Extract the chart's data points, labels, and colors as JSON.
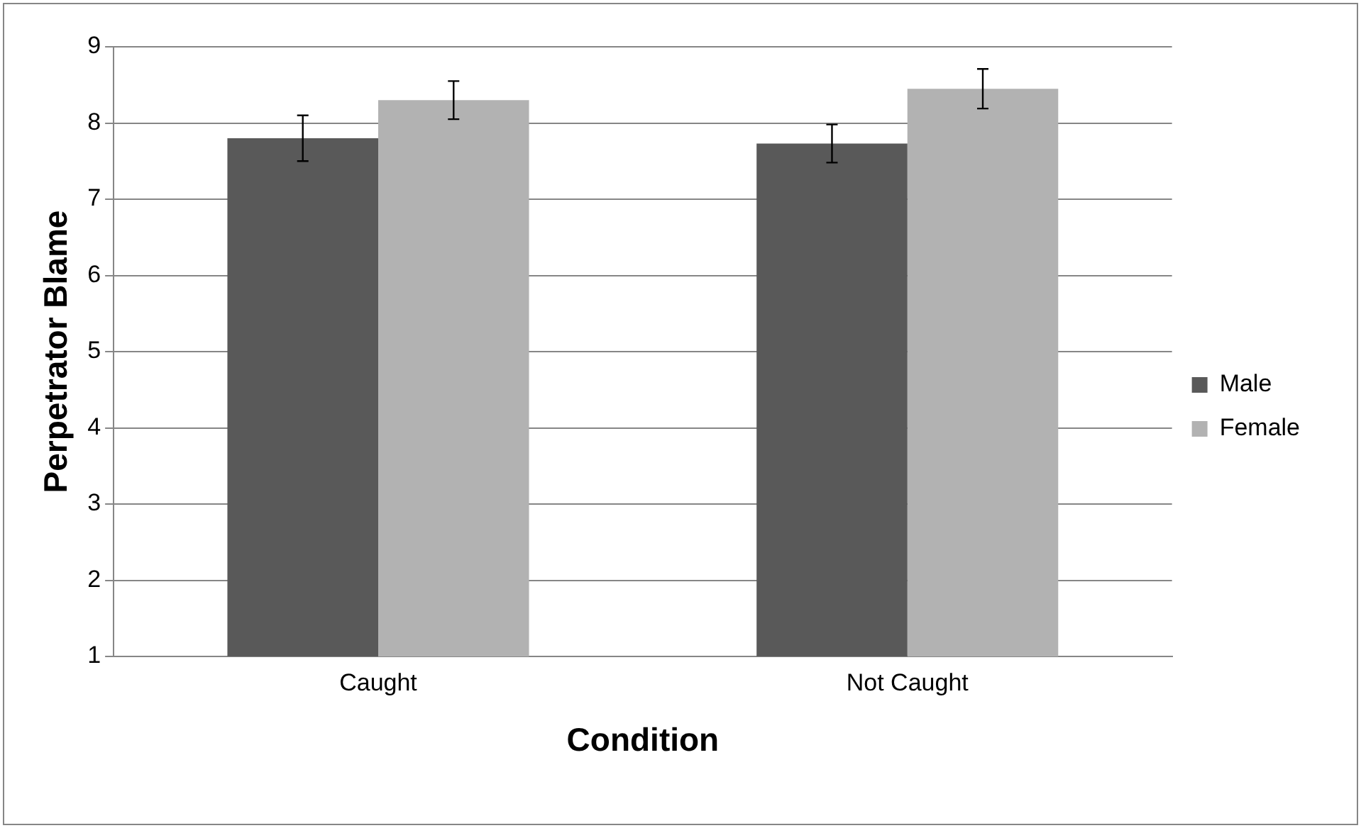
{
  "chart_data": {
    "type": "bar",
    "xlabel": "Condition",
    "ylabel": "Perpetrator Blame",
    "categories": [
      "Caught",
      "Not Caught"
    ],
    "series": [
      {
        "name": "Male",
        "color": "#595959",
        "values": [
          7.8,
          7.73
        ],
        "errors": [
          0.3,
          0.25
        ]
      },
      {
        "name": "Female",
        "color": "#b2b2b2",
        "values": [
          8.3,
          8.45
        ],
        "errors": [
          0.25,
          0.26
        ]
      }
    ],
    "ylim": [
      1,
      9
    ],
    "yticks": [
      1,
      2,
      3,
      4,
      5,
      6,
      7,
      8,
      9
    ],
    "grid": "y",
    "legend": "right"
  }
}
